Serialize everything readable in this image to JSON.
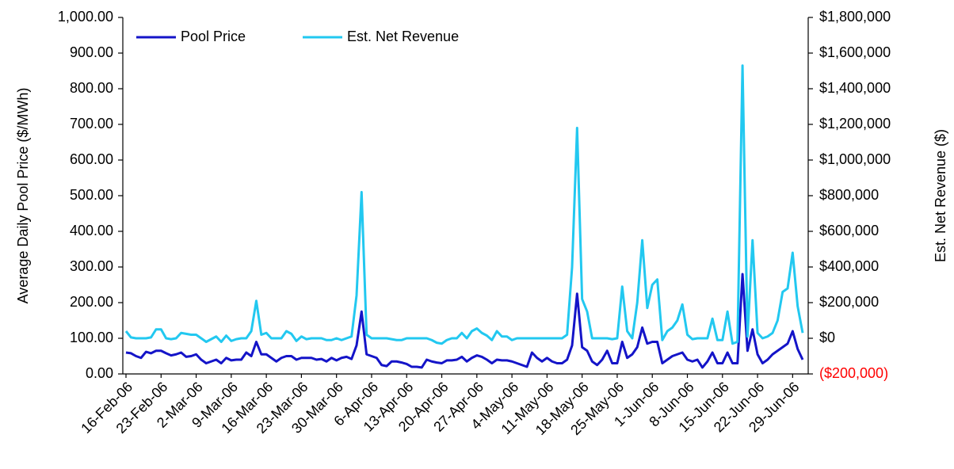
{
  "chart_data": {
    "type": "line",
    "y_label": "Average Daily Pool Price ($/MWh)",
    "y2_label": "Est. Net Revenue ($)",
    "legend": "upper left",
    "categories": [
      "16-Feb-06",
      null,
      null,
      null,
      null,
      null,
      null,
      "23-Feb-06",
      null,
      null,
      null,
      null,
      null,
      null,
      "2-Mar-06",
      null,
      null,
      null,
      null,
      null,
      null,
      "9-Mar-06",
      null,
      null,
      null,
      null,
      null,
      null,
      "16-Mar-06",
      null,
      null,
      null,
      null,
      null,
      null,
      "23-Mar-06",
      null,
      null,
      null,
      null,
      null,
      null,
      "30-Mar-06",
      null,
      null,
      null,
      null,
      null,
      null,
      "6-Apr-06",
      null,
      null,
      null,
      null,
      null,
      null,
      "13-Apr-06",
      null,
      null,
      null,
      null,
      null,
      null,
      "20-Apr-06",
      null,
      null,
      null,
      null,
      null,
      null,
      "27-Apr-06",
      null,
      null,
      null,
      null,
      null,
      null,
      "4-May-06",
      null,
      null,
      null,
      null,
      null,
      null,
      "11-May-06",
      null,
      null,
      null,
      null,
      null,
      null,
      "18-May-06",
      null,
      null,
      null,
      null,
      null,
      null,
      "25-May-06",
      null,
      null,
      null,
      null,
      null,
      null,
      "1-Jun-06",
      null,
      null,
      null,
      null,
      null,
      null,
      "8-Jun-06",
      null,
      null,
      null,
      null,
      null,
      null,
      "15-Jun-06",
      null,
      null,
      null,
      null,
      null,
      null,
      "22-Jun-06",
      null,
      null,
      null,
      null,
      null,
      null,
      "29-Jun-06",
      null,
      null
    ],
    "series": [
      {
        "name": "Pool Price",
        "color": "#1414c8",
        "axis": "y",
        "values": [
          60,
          58,
          50,
          45,
          62,
          58,
          65,
          65,
          58,
          52,
          55,
          60,
          48,
          50,
          55,
          40,
          30,
          35,
          40,
          30,
          45,
          38,
          40,
          40,
          60,
          50,
          90,
          55,
          55,
          45,
          35,
          45,
          50,
          50,
          40,
          45,
          45,
          45,
          40,
          42,
          35,
          45,
          38,
          45,
          48,
          42,
          80,
          175,
          55,
          50,
          45,
          25,
          22,
          35,
          35,
          32,
          28,
          20,
          20,
          18,
          40,
          35,
          32,
          30,
          38,
          38,
          40,
          48,
          35,
          45,
          52,
          48,
          40,
          30,
          40,
          38,
          38,
          35,
          30,
          25,
          20,
          60,
          45,
          35,
          45,
          35,
          30,
          30,
          40,
          80,
          225,
          75,
          65,
          35,
          25,
          40,
          65,
          30,
          30,
          90,
          45,
          55,
          75,
          130,
          85,
          90,
          90,
          30,
          40,
          50,
          55,
          60,
          40,
          35,
          40,
          18,
          35,
          60,
          30,
          30,
          60,
          30,
          30,
          280,
          65,
          125,
          55,
          30,
          40,
          55,
          65,
          75,
          85,
          120,
          70,
          40
        ]
      },
      {
        "name": "Est. Net Revenue",
        "color": "#22c8f0",
        "axis": "y2",
        "values": [
          40000,
          5000,
          0,
          0,
          0,
          5000,
          50000,
          50000,
          0,
          -5000,
          0,
          30000,
          25000,
          20000,
          20000,
          0,
          -20000,
          -5000,
          10000,
          -20000,
          15000,
          -15000,
          -5000,
          0,
          0,
          40000,
          210000,
          20000,
          30000,
          0,
          0,
          0,
          40000,
          25000,
          -15000,
          10000,
          -5000,
          0,
          0,
          0,
          -10000,
          -10000,
          0,
          -10000,
          0,
          10000,
          240000,
          820000,
          20000,
          0,
          0,
          0,
          0,
          -5000,
          -10000,
          -10000,
          0,
          0,
          0,
          0,
          0,
          -10000,
          -25000,
          -30000,
          -10000,
          0,
          0,
          30000,
          0,
          40000,
          55000,
          30000,
          15000,
          -10000,
          40000,
          10000,
          10000,
          -10000,
          0,
          0,
          0,
          0,
          0,
          0,
          0,
          0,
          0,
          0,
          20000,
          400000,
          1180000,
          220000,
          150000,
          0,
          0,
          0,
          0,
          -5000,
          0,
          290000,
          40000,
          0,
          200000,
          550000,
          170000,
          300000,
          330000,
          -10000,
          40000,
          60000,
          100000,
          190000,
          20000,
          -5000,
          0,
          0,
          0,
          110000,
          -10000,
          -10000,
          150000,
          -30000,
          -20000,
          1530000,
          10000,
          550000,
          30000,
          0,
          10000,
          30000,
          100000,
          260000,
          280000,
          480000,
          180000,
          30000
        ]
      }
    ],
    "ylim": [
      0,
      1000
    ],
    "yticks": [
      {
        "value": 0,
        "label": "0.00"
      },
      {
        "value": 100,
        "label": "100.00"
      },
      {
        "value": 200,
        "label": "200.00"
      },
      {
        "value": 300,
        "label": "300.00"
      },
      {
        "value": 400,
        "label": "400.00"
      },
      {
        "value": 500,
        "label": "500.00"
      },
      {
        "value": 600,
        "label": "600.00"
      },
      {
        "value": 700,
        "label": "700.00"
      },
      {
        "value": 800,
        "label": "800.00"
      },
      {
        "value": 900,
        "label": "900.00"
      },
      {
        "value": 1000,
        "label": "1,000.00"
      }
    ],
    "y2lim": [
      -200000,
      1800000
    ],
    "y2ticks": [
      {
        "value": -200000,
        "label": "($200,000)"
      },
      {
        "value": 0,
        "label": "$0"
      },
      {
        "value": 200000,
        "label": "$200,000"
      },
      {
        "value": 400000,
        "label": "$400,000"
      },
      {
        "value": 600000,
        "label": "$600,000"
      },
      {
        "value": 800000,
        "label": "$800,000"
      },
      {
        "value": 1000000,
        "label": "$1,000,000"
      },
      {
        "value": 1200000,
        "label": "$1,200,000"
      },
      {
        "value": 1400000,
        "label": "$1,400,000"
      },
      {
        "value": 1600000,
        "label": "$1,600,000"
      },
      {
        "value": 1800000,
        "label": "$1,800,000"
      }
    ],
    "negative_tick_color": "#ff0000"
  }
}
